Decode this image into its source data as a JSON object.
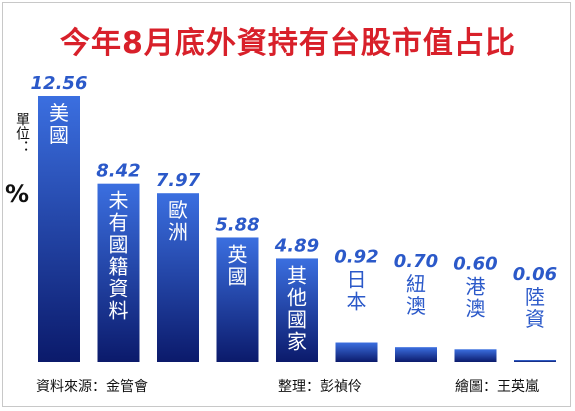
{
  "title": "今年8月底外資持有台股市值占比",
  "unit_label": "單位：",
  "unit_sign": "%",
  "footer": {
    "source": "資料來源：金管會",
    "compiler": "整理：彭禎伶",
    "graphics": "繪圖：王英嵐"
  },
  "colors": {
    "bar_top": "#3b6fe0",
    "bar_bottom": "#0b1a6b",
    "value_label": "#2b59c9",
    "title": "#d8202a",
    "bar_text": "#ffffff",
    "small_bar_text": "#2b59c9"
  },
  "chart_data": {
    "type": "bar",
    "title": "今年8月底外資持有台股市值占比",
    "unit": "%",
    "categories": [
      "美國",
      "未有國籍資料",
      "歐洲",
      "英國",
      "其他國家",
      "日本",
      "紐澳",
      "港澳",
      "陸資"
    ],
    "values": [
      12.56,
      8.42,
      7.97,
      5.88,
      4.89,
      0.92,
      0.7,
      0.6,
      0.06
    ],
    "value_labels": [
      "12.56",
      "8.42",
      "7.97",
      "5.88",
      "4.89",
      "0.92",
      "0.70",
      "0.60",
      "0.06"
    ],
    "ylim": [
      0,
      12.56
    ],
    "grid": false,
    "legend": "none"
  }
}
